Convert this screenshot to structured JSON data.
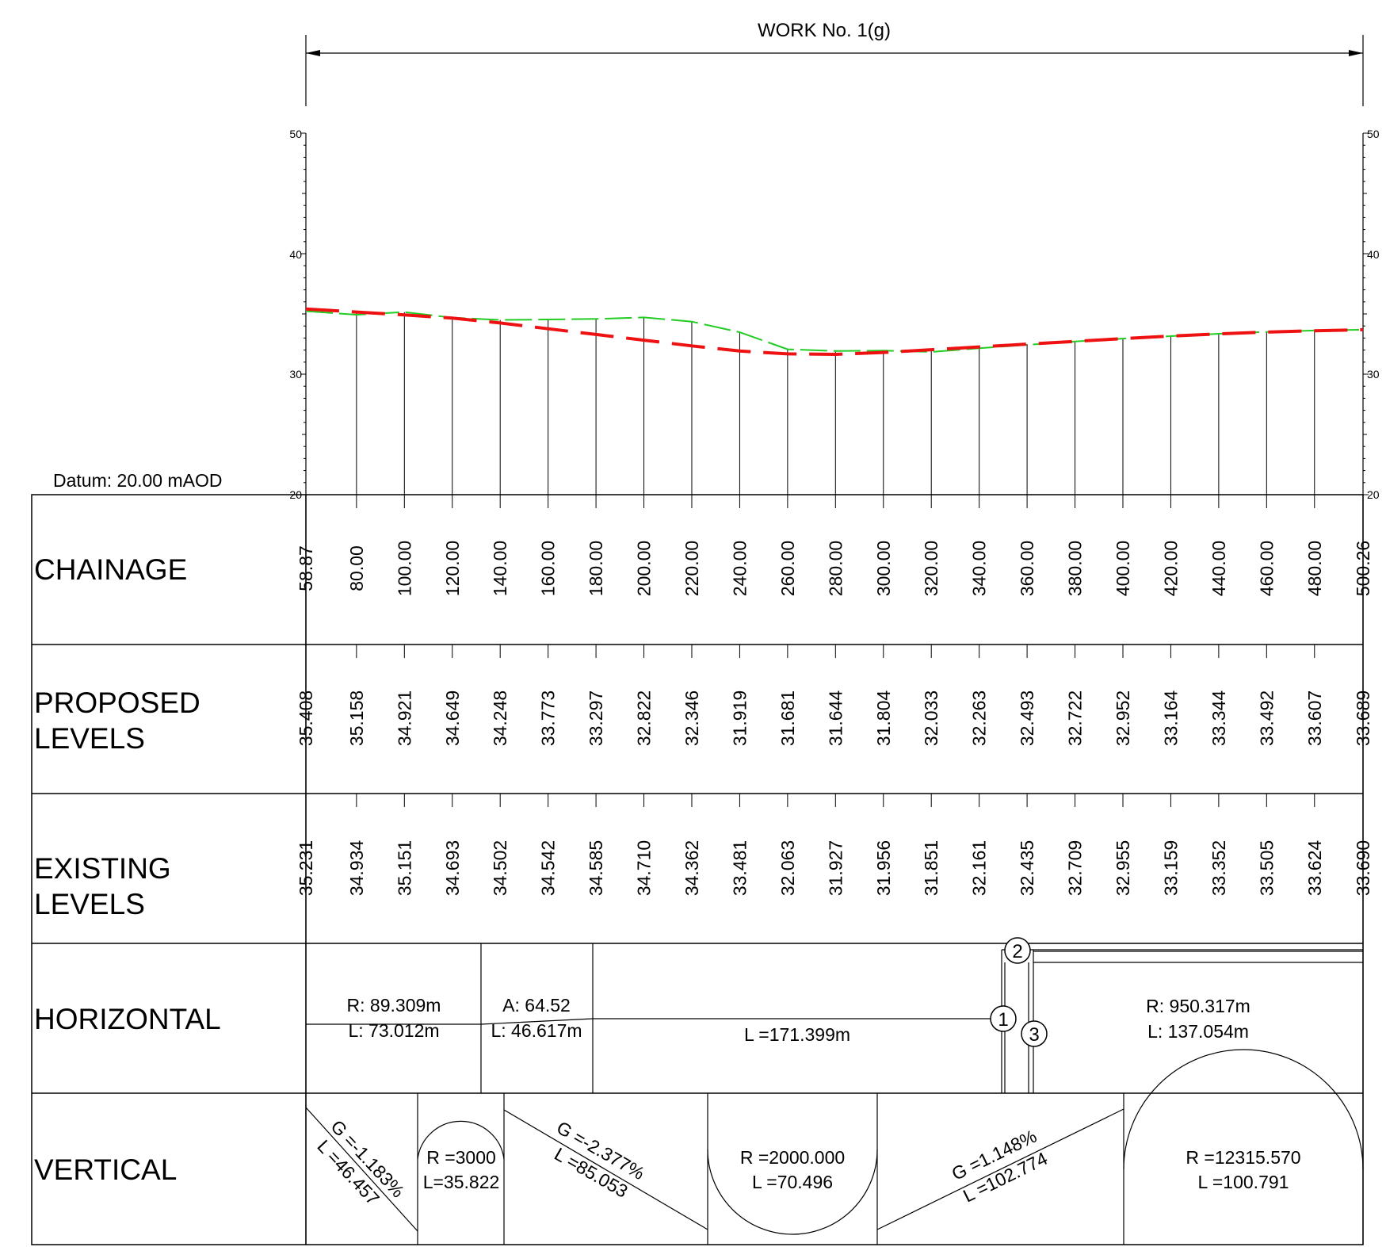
{
  "title": "WORK No. 1(g)",
  "datum": "Datum: 20.00 mAOD",
  "axis_ticks": [
    "50",
    "40",
    "30",
    "20"
  ],
  "rows": {
    "chainage": "CHAINAGE",
    "proposed_1": "PROPOSED",
    "proposed_2": "LEVELS",
    "existing_1": "EXISTING",
    "existing_2": "LEVELS",
    "horizontal": "HORIZONTAL",
    "vertical": "VERTICAL"
  },
  "chainage_labels": [
    "58.87",
    "80.00",
    "100.00",
    "120.00",
    "140.00",
    "160.00",
    "180.00",
    "200.00",
    "220.00",
    "240.00",
    "260.00",
    "280.00",
    "300.00",
    "320.00",
    "340.00",
    "360.00",
    "380.00",
    "400.00",
    "420.00",
    "440.00",
    "460.00",
    "480.00",
    "500.26"
  ],
  "proposed_labels": [
    "35.408",
    "35.158",
    "34.921",
    "34.649",
    "34.248",
    "33.773",
    "33.297",
    "32.822",
    "32.346",
    "31.919",
    "31.681",
    "31.644",
    "31.804",
    "32.033",
    "32.263",
    "32.493",
    "32.722",
    "32.952",
    "33.164",
    "33.344",
    "33.492",
    "33.607",
    "33.689"
  ],
  "existing_labels": [
    "35.231",
    "34.934",
    "35.151",
    "34.693",
    "34.502",
    "34.542",
    "34.585",
    "34.710",
    "34.362",
    "33.481",
    "32.063",
    "31.927",
    "31.956",
    "31.851",
    "32.161",
    "32.435",
    "32.709",
    "32.955",
    "33.159",
    "33.352",
    "33.505",
    "33.624",
    "33.690"
  ],
  "horizontal": {
    "seg1_r": "R: 89.309m",
    "seg1_l": "L: 73.012m",
    "seg2_a": "A: 64.52",
    "seg2_l": "L: 46.617m",
    "seg3_l": "L =171.399m",
    "seg4_r": "R: 950.317m",
    "seg4_l": "L: 137.054m",
    "marker_1": "1",
    "marker_2": "2",
    "marker_3": "3"
  },
  "vertical": {
    "v1_g": "G =-1.183%",
    "v1_l": "L =46.457",
    "v2_r": "R =3000",
    "v2_l": "L=35.822",
    "v3_g": "G =-2.377%",
    "v3_l": "L =85.053",
    "v4_r": "R =2000.000",
    "v4_l": "L =70.496",
    "v5_g": "G =1.148%",
    "v5_l": "L =102.774",
    "v6_r": "R =12315.570",
    "v6_l": "L =100.791"
  },
  "chart_data": {
    "type": "line",
    "x_label": "CHAINAGE",
    "y_label": "",
    "ylim": [
      20,
      50
    ],
    "xlim": [
      58.87,
      500.26
    ],
    "x": [
      58.87,
      80.0,
      100.0,
      120.0,
      140.0,
      160.0,
      180.0,
      200.0,
      220.0,
      240.0,
      260.0,
      280.0,
      300.0,
      320.0,
      340.0,
      360.0,
      380.0,
      400.0,
      420.0,
      440.0,
      460.0,
      480.0,
      500.26
    ],
    "series": [
      {
        "name": "PROPOSED LEVELS",
        "color": "#ee1111",
        "values": [
          35.408,
          35.158,
          34.921,
          34.649,
          34.248,
          33.773,
          33.297,
          32.822,
          32.346,
          31.919,
          31.681,
          31.644,
          31.804,
          32.033,
          32.263,
          32.493,
          32.722,
          32.952,
          33.164,
          33.344,
          33.492,
          33.607,
          33.689
        ]
      },
      {
        "name": "EXISTING LEVELS",
        "color": "#22cc22",
        "values": [
          35.231,
          34.934,
          35.151,
          34.693,
          34.502,
          34.542,
          34.585,
          34.71,
          34.362,
          33.481,
          32.063,
          31.927,
          31.956,
          31.851,
          32.161,
          32.435,
          32.709,
          32.955,
          33.159,
          33.352,
          33.505,
          33.624,
          33.69
        ]
      }
    ]
  }
}
